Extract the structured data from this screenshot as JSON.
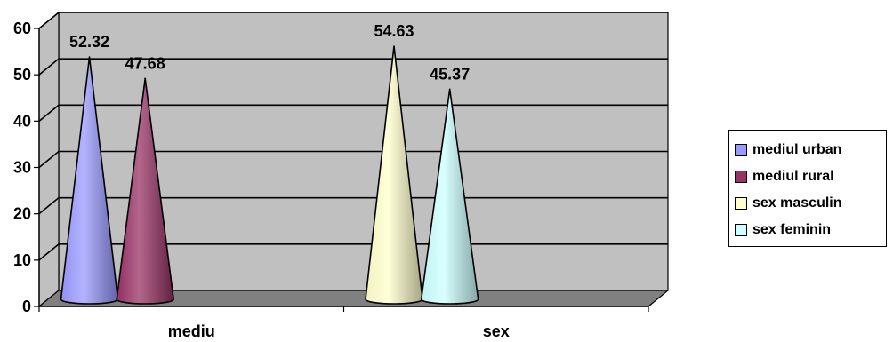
{
  "chart_data": {
    "type": "bar",
    "bar_shape": "cone",
    "view": "3d",
    "categories": [
      "mediu",
      "sex"
    ],
    "series": [
      {
        "name": "mediul urban",
        "color": "#9999FF",
        "values": [
          52.32,
          null
        ]
      },
      {
        "name": "mediul rural",
        "color": "#993366",
        "values": [
          47.68,
          null
        ]
      },
      {
        "name": "sex masculin",
        "color": "#FFFFCC",
        "values": [
          null,
          54.63
        ]
      },
      {
        "name": "sex feminin",
        "color": "#CCFFFF",
        "values": [
          null,
          45.37
        ]
      }
    ],
    "data_labels": [
      "52.32",
      "47.68",
      "54.63",
      "45.37"
    ],
    "yticks": [
      "0",
      "10",
      "20",
      "30",
      "40",
      "50",
      "60"
    ],
    "ylim": [
      0,
      60
    ],
    "title": "",
    "xlabel": "",
    "ylabel": "",
    "grid": true,
    "wall_color": "#C0C0C0",
    "floor_color": "#808080",
    "legend_position": "right"
  }
}
